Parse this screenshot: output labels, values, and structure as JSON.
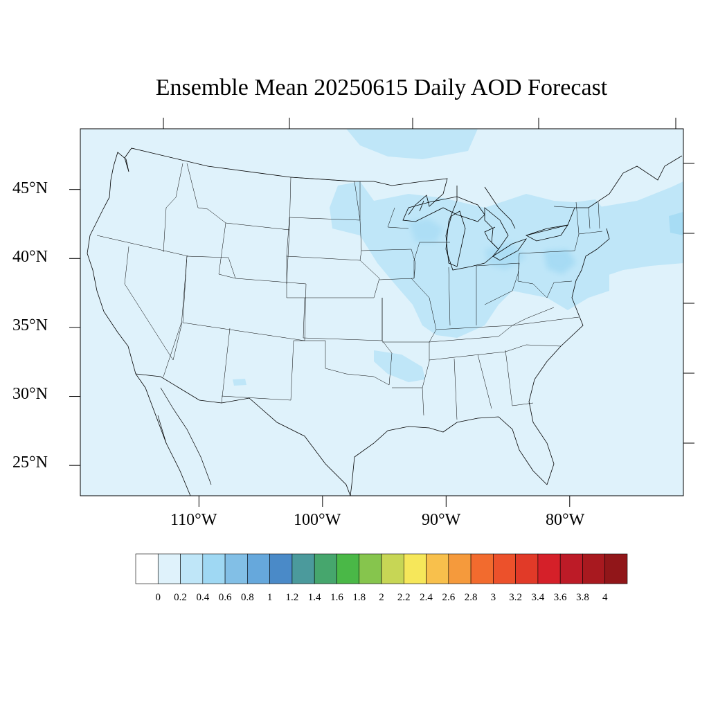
{
  "title": "Ensemble Mean 20250615 Daily AOD Forecast",
  "map": {
    "background_color": "#dff2fb",
    "domain": {
      "lon_min": -119.6,
      "lon_max": -70.8,
      "lat_min": 22.8,
      "lat_max": 49.4
    },
    "lat_ticks": [
      {
        "value": 45,
        "label": "45°N"
      },
      {
        "value": 40,
        "label": "40°N"
      },
      {
        "value": 35,
        "label": "35°N"
      },
      {
        "value": 30,
        "label": "30°N"
      },
      {
        "value": 25,
        "label": "25°N"
      }
    ],
    "lon_ticks": [
      {
        "value": -110,
        "label": "110°W"
      },
      {
        "value": -100,
        "label": "100°W"
      },
      {
        "value": -90,
        "label": "90°W"
      },
      {
        "value": -80,
        "label": "80°W"
      }
    ]
  },
  "colorbar": {
    "levels": [
      "0",
      "0.2",
      "0.4",
      "0.6",
      "0.8",
      "1",
      "1.2",
      "1.4",
      "1.6",
      "1.8",
      "2",
      "2.2",
      "2.4",
      "2.6",
      "2.8",
      "3",
      "3.2",
      "3.4",
      "3.6",
      "3.8",
      "4"
    ],
    "colors": [
      "#ffffff",
      "#dff2fb",
      "#bfe6f8",
      "#9fd8f3",
      "#82bfe6",
      "#66a8dc",
      "#4a8ac8",
      "#4b9a9c",
      "#46a66d",
      "#4ab847",
      "#86c54d",
      "#c7d655",
      "#f6e75a",
      "#f8c04c",
      "#f59a3c",
      "#f26b2e",
      "#ec512b",
      "#e13a28",
      "#d52029",
      "#bd1b27",
      "#a8191f",
      "#911619"
    ]
  }
}
